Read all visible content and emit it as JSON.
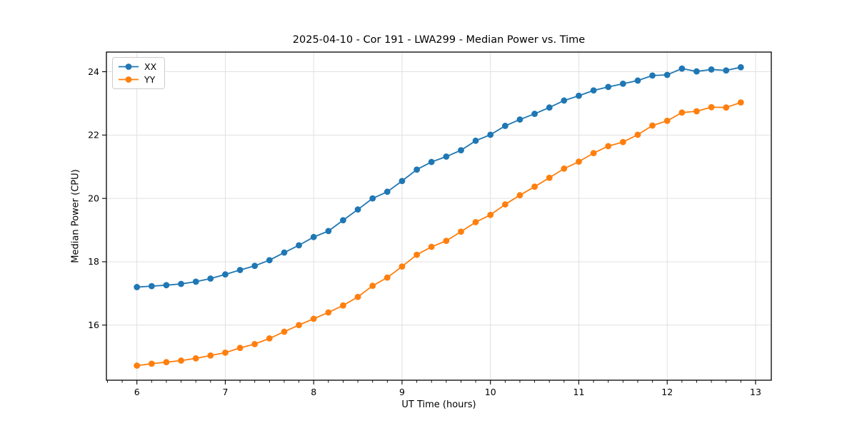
{
  "chart_data": {
    "type": "line",
    "title": "2025-04-10 - Cor 191 - LWA299 - Median Power vs. Time",
    "xlabel": "UT Time (hours)",
    "ylabel": "Median Power (CPU)",
    "grid": true,
    "legend_position": "upper left",
    "marker": "o",
    "xlim": [
      5.655,
      13.178
    ],
    "ylim": [
      14.26,
      24.62
    ],
    "xticks": [
      6,
      7,
      8,
      9,
      10,
      11,
      12,
      13
    ],
    "yticks": [
      16,
      18,
      20,
      22,
      24
    ],
    "x_minor_step": 0.166667,
    "x": [
      6,
      6.167,
      6.333,
      6.5,
      6.667,
      6.833,
      7,
      7.167,
      7.333,
      7.5,
      7.667,
      7.833,
      8,
      8.167,
      8.333,
      8.5,
      8.667,
      8.833,
      9,
      9.167,
      9.333,
      9.5,
      9.667,
      9.833,
      10,
      10.167,
      10.333,
      10.5,
      10.667,
      10.833,
      11,
      11.167,
      11.333,
      11.5,
      11.667,
      11.833,
      12,
      12.167,
      12.333,
      12.5,
      12.667,
      12.833
    ],
    "series": [
      {
        "name": "XX",
        "color": "#1f77b4",
        "values": [
          17.2,
          17.23,
          17.26,
          17.3,
          17.37,
          17.47,
          17.6,
          17.74,
          17.87,
          18.05,
          18.29,
          18.52,
          18.78,
          18.97,
          19.31,
          19.65,
          20.0,
          20.21,
          20.55,
          20.91,
          21.15,
          21.32,
          21.52,
          21.82,
          22.01,
          22.29,
          22.49,
          22.67,
          22.87,
          23.09,
          23.24,
          23.41,
          23.52,
          23.62,
          23.72,
          23.88,
          23.9,
          24.1,
          24.01,
          24.07,
          24.04,
          24.14
        ]
      },
      {
        "name": "YY",
        "color": "#ff7f0e",
        "values": [
          14.72,
          14.78,
          14.83,
          14.88,
          14.95,
          15.04,
          15.13,
          15.28,
          15.4,
          15.58,
          15.79,
          16.0,
          16.2,
          16.4,
          16.62,
          16.89,
          17.24,
          17.5,
          17.85,
          18.22,
          18.47,
          18.66,
          18.95,
          19.25,
          19.48,
          19.81,
          20.1,
          20.37,
          20.65,
          20.94,
          21.16,
          21.43,
          21.65,
          21.78,
          22.01,
          22.3,
          22.45,
          22.71,
          22.75,
          22.88,
          22.87,
          23.03
        ]
      }
    ],
    "style": {
      "grid_color": "#e0e0e0",
      "spine_color": "#000000",
      "tick_label_color": "#000000",
      "background": "#ffffff"
    }
  }
}
